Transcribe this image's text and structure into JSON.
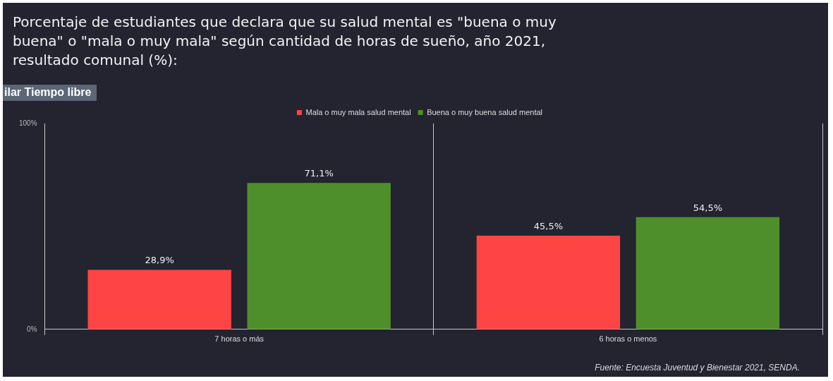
{
  "chart_data": {
    "type": "bar",
    "title": "Porcentaje de estudiantes que declara que su salud mental es \"buena o muy buena\" o \"mala o muy mala\" según cantidad de horas de sueño, año 2021, resultado comunal (%):",
    "categories": [
      "7 horas o más",
      "6 horas o menos"
    ],
    "series": [
      {
        "name": "Mala o muy mala salud mental",
        "color": "#ff4444",
        "values": [
          28.9,
          45.5
        ],
        "value_labels": [
          "28,9%",
          "45,5%"
        ]
      },
      {
        "name": "Buena o muy buena salud mental",
        "color": "#4e8f2c",
        "values": [
          71.1,
          54.5
        ],
        "value_labels": [
          "71,1%",
          "54,5%"
        ]
      }
    ],
    "ylim": [
      0,
      100
    ],
    "yticks": [
      {
        "value": 0,
        "label": "0%"
      },
      {
        "value": 100,
        "label": "100%"
      }
    ],
    "grid": "x",
    "legend": "top",
    "annotations": [
      "ilar Tiempo libre",
      "Fuente: Encuesta Juventud y Bienestar 2021, SENDA."
    ]
  }
}
